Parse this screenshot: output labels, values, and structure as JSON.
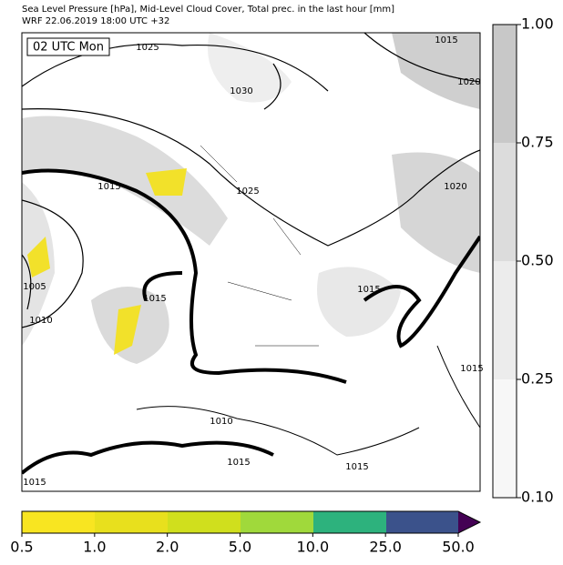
{
  "header": {
    "title_line1": "Sea Level Pressure [hPa], Mid-Level Cloud Cover, Total prec. in the last hour [mm]",
    "title_line2": "WRF 22.06.2019 18:00 UTC +32"
  },
  "map": {
    "time_label": "02 UTC Mon",
    "contour_labels": [
      "1025",
      "1015",
      "1020",
      "1030",
      "1015",
      "1025",
      "1020",
      "1005",
      "1015",
      "1010",
      "1015",
      "1015",
      "1010",
      "1015",
      "1015",
      "1015"
    ]
  },
  "cloud_colorbar": {
    "ticks": [
      "1.00",
      "0.75",
      "0.50",
      "0.25",
      "0.10"
    ]
  },
  "precip_colorbar": {
    "ticks": [
      "0.5",
      "1.0",
      "2.0",
      "5.0",
      "10.0",
      "25.0",
      "50.0"
    ]
  }
}
